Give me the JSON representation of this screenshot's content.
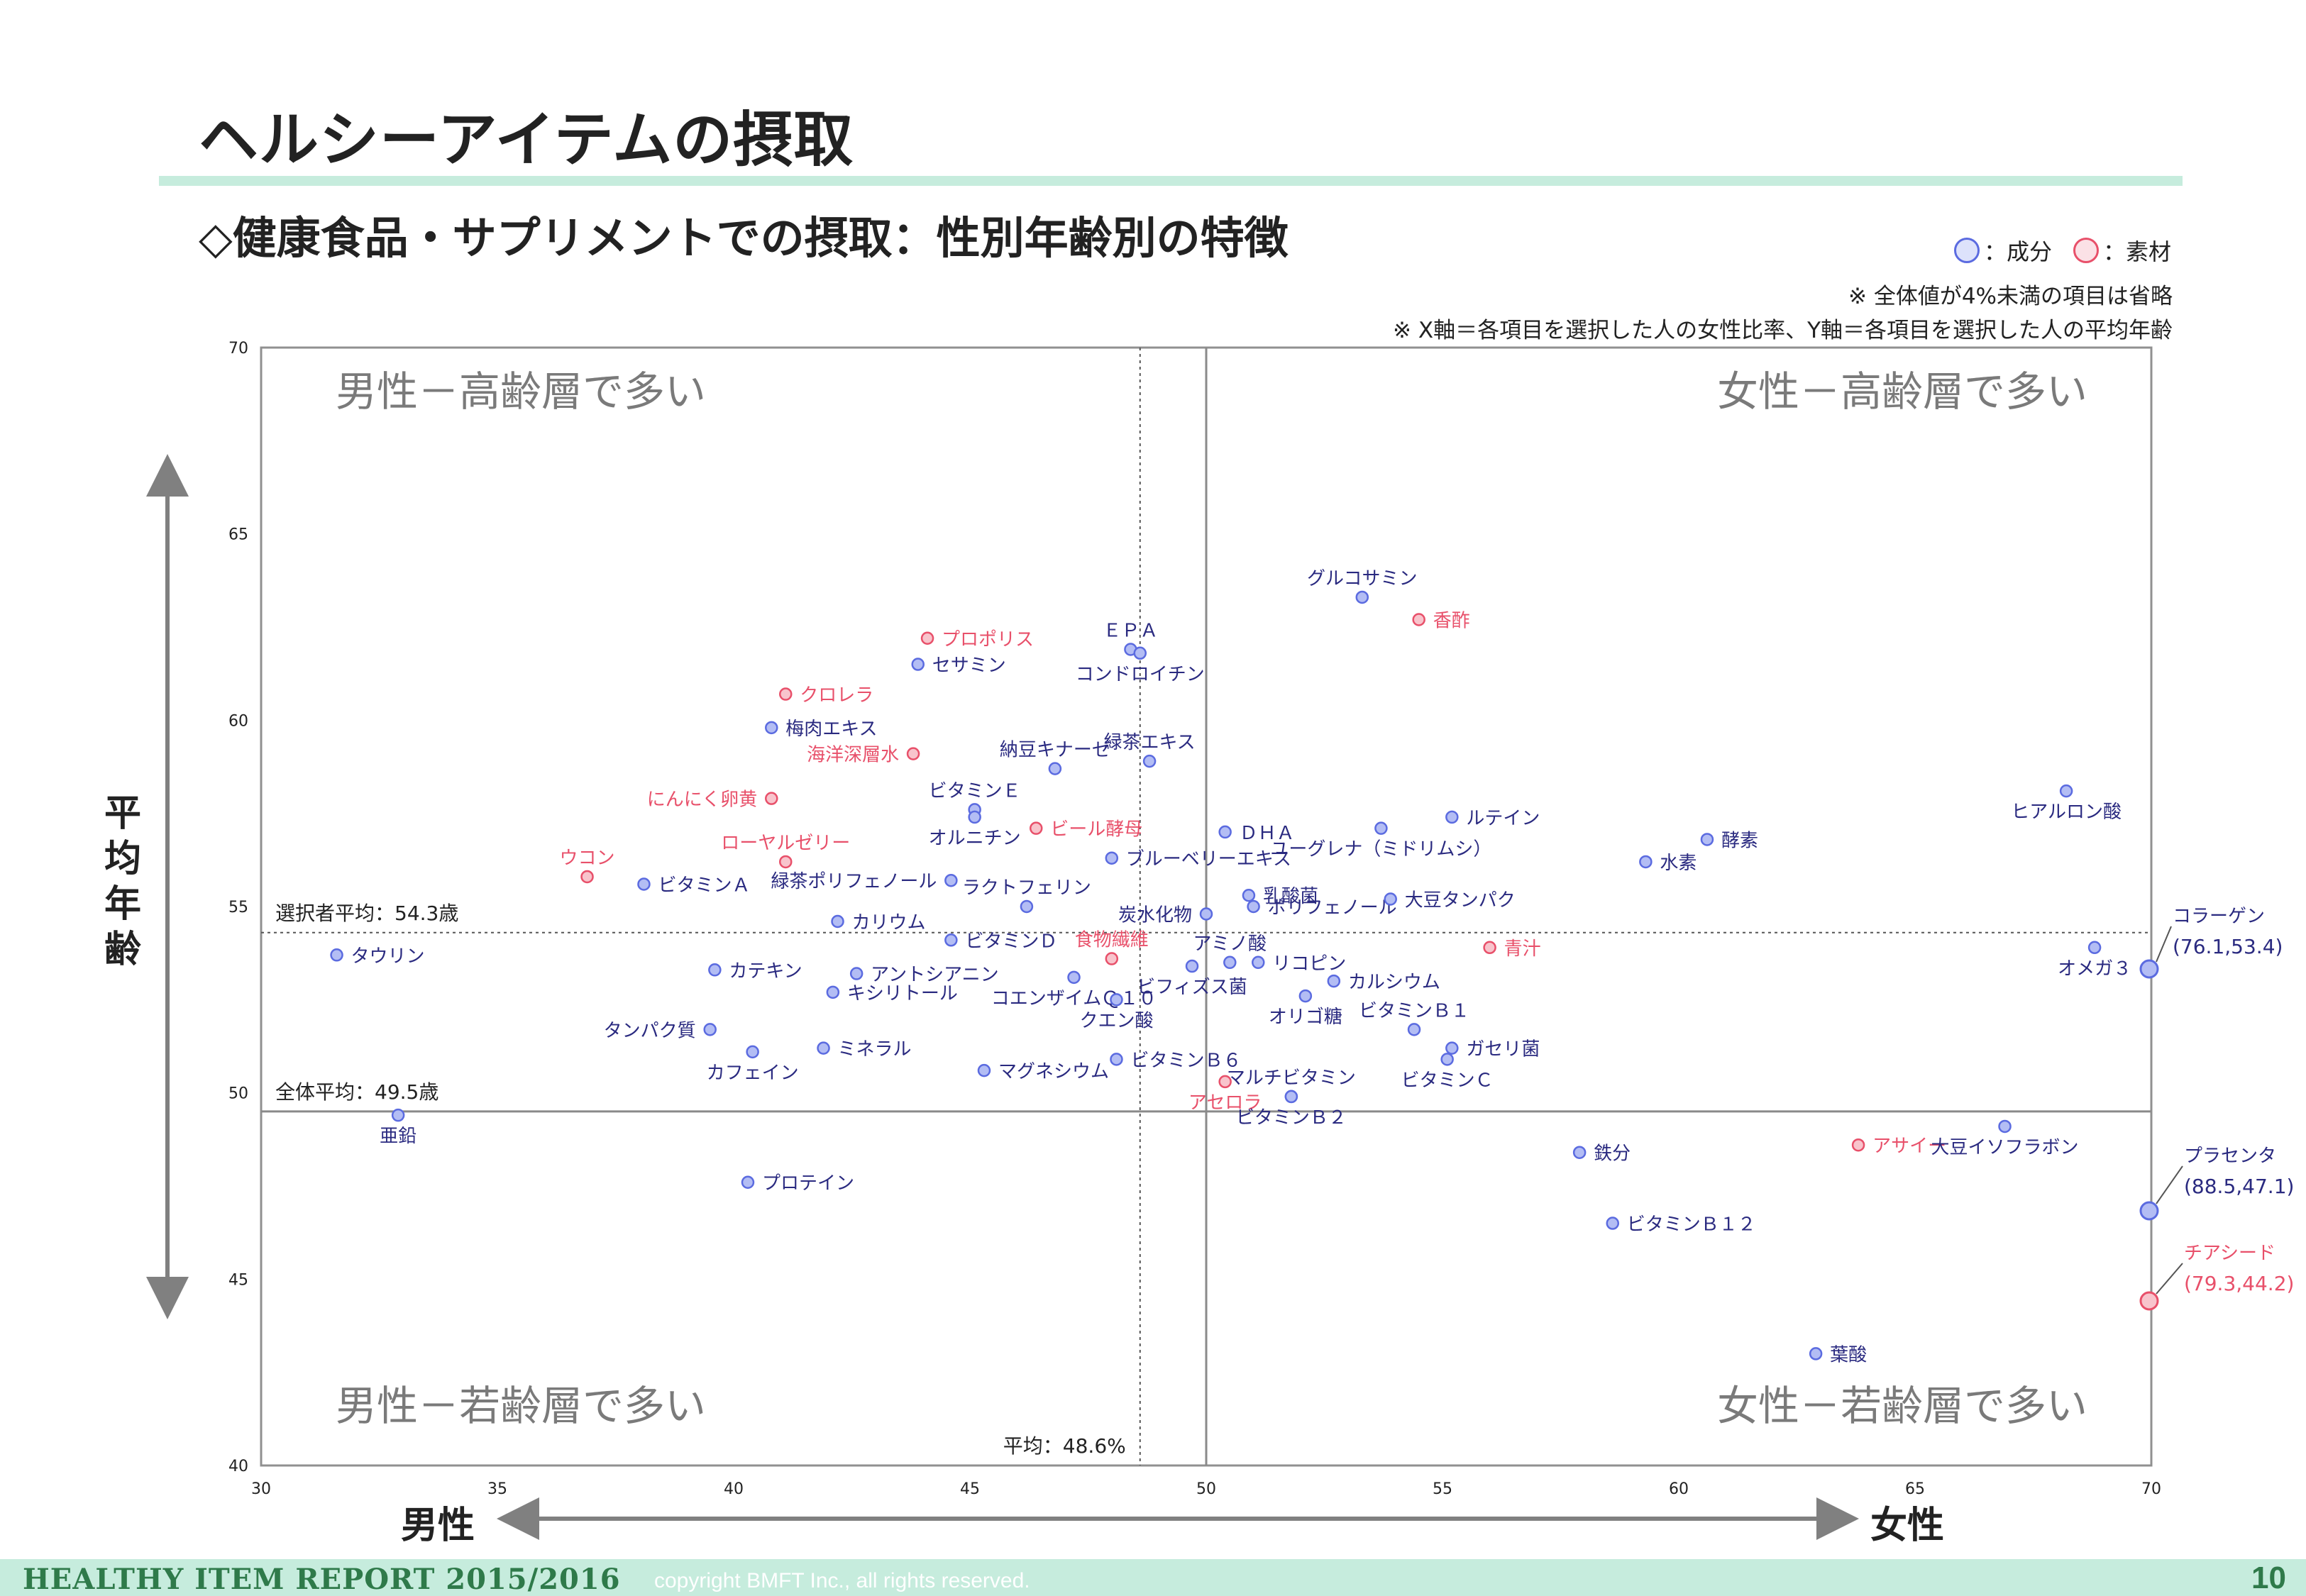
{
  "page": {
    "title": "ヘルシーアイテムの摂取",
    "subtitle": "◇健康食品・サプリメントでの摂取：性別年齢別の特徴",
    "legend": [
      {
        "label": "：成分",
        "color": "#5b6be0"
      },
      {
        "label": "：素材",
        "color": "#e8506a"
      }
    ],
    "note1": "※ 全体値が4%未満の項目は省略",
    "note2": "※ X軸＝各項目を選択した人の女性比率、Y軸＝各項目を選択した人の平均年齢",
    "y_axis_title": "平均年齢",
    "x_axis_male": "男性",
    "x_axis_female": "女性",
    "footer_left": "HEALTHY ITEM REPORT 2015/2016",
    "footer_copyright": "copyright  BMFT Inc., all rights reserved.",
    "page_number": "10"
  },
  "chart_data": {
    "type": "scatter",
    "xlim": [
      30,
      70
    ],
    "ylim": [
      40,
      70
    ],
    "x_ticks": [
      "30",
      "35",
      "40",
      "45",
      "50",
      "55",
      "60",
      "65",
      "70"
    ],
    "y_ticks": [
      "40",
      "45",
      "50",
      "55",
      "60",
      "65",
      "70"
    ],
    "grid": false,
    "quadrant_labels": {
      "top_left": "男性－高齢層で多い",
      "top_right": "女性－高齢層で多い",
      "bottom_left": "男性－若齢層で多い",
      "bottom_right": "女性－若齢層で多い"
    },
    "reference_lines": [
      {
        "axis": "y",
        "value": 54.3,
        "style": "dotted",
        "label": "選択者平均：54.3歳"
      },
      {
        "axis": "y",
        "value": 49.5,
        "style": "solid",
        "label": "全体平均：49.5歳"
      },
      {
        "axis": "x",
        "value": 48.6,
        "style": "dotted",
        "label": "平均：48.6%"
      },
      {
        "axis": "x",
        "value": 50,
        "style": "solid",
        "label": ""
      }
    ],
    "colors": {
      "component": "#5b6be0",
      "component_fill": "#b3bdf4",
      "material": "#e8506a",
      "material_fill": "#f8c4cc"
    },
    "points": [
      {
        "label": "グルコサミン",
        "x": 53.3,
        "y": 63.3,
        "kind": "component",
        "label_pos": "above"
      },
      {
        "label": "香酢",
        "x": 54.5,
        "y": 62.7,
        "kind": "material",
        "label_pos": "right"
      },
      {
        "label": "ＥＰＡ",
        "x": 48.4,
        "y": 61.9,
        "kind": "component",
        "label_pos": "above"
      },
      {
        "label": "コンドロイチン",
        "x": 48.6,
        "y": 61.8,
        "kind": "component",
        "label_pos": "below"
      },
      {
        "label": "プロポリス",
        "x": 44.1,
        "y": 62.2,
        "kind": "material",
        "label_pos": "right"
      },
      {
        "label": "セサミン",
        "x": 43.9,
        "y": 61.5,
        "kind": "component",
        "label_pos": "right"
      },
      {
        "label": "クロレラ",
        "x": 41.1,
        "y": 60.7,
        "kind": "material",
        "label_pos": "right"
      },
      {
        "label": "梅肉エキス",
        "x": 40.8,
        "y": 59.8,
        "kind": "component",
        "label_pos": "right"
      },
      {
        "label": "海洋深層水",
        "x": 43.8,
        "y": 59.1,
        "kind": "material",
        "label_pos": "left"
      },
      {
        "label": "納豆キナーゼ",
        "x": 46.8,
        "y": 58.7,
        "kind": "component",
        "label_pos": "above"
      },
      {
        "label": "緑茶エキス",
        "x": 48.8,
        "y": 58.9,
        "kind": "component",
        "label_pos": "above"
      },
      {
        "label": "にんにく卵黄",
        "x": 40.8,
        "y": 57.9,
        "kind": "material",
        "label_pos": "left"
      },
      {
        "label": "ビタミンＥ",
        "x": 45.1,
        "y": 57.6,
        "kind": "component",
        "label_pos": "above"
      },
      {
        "label": "オルニチン",
        "x": 45.1,
        "y": 57.4,
        "kind": "component",
        "label_pos": "below"
      },
      {
        "label": "ビール酵母",
        "x": 46.4,
        "y": 57.1,
        "kind": "material",
        "label_pos": "right"
      },
      {
        "label": "ＤＨＡ",
        "x": 50.4,
        "y": 57.0,
        "kind": "component",
        "label_pos": "right"
      },
      {
        "label": "ルテイン",
        "x": 55.2,
        "y": 57.4,
        "kind": "component",
        "label_pos": "right"
      },
      {
        "label": "ユーグレナ（ミドリムシ）",
        "x": 53.7,
        "y": 57.1,
        "kind": "component",
        "label_pos": "below"
      },
      {
        "label": "酵素",
        "x": 60.6,
        "y": 56.8,
        "kind": "component",
        "label_pos": "right"
      },
      {
        "label": "水素",
        "x": 59.3,
        "y": 56.2,
        "kind": "component",
        "label_pos": "right"
      },
      {
        "label": "ヒアルロン酸",
        "x": 68.2,
        "y": 58.1,
        "kind": "component",
        "label_pos": "below"
      },
      {
        "label": "ウコン",
        "x": 36.9,
        "y": 55.8,
        "kind": "material",
        "label_pos": "above"
      },
      {
        "label": "ビタミンＡ",
        "x": 38.1,
        "y": 55.6,
        "kind": "component",
        "label_pos": "right"
      },
      {
        "label": "ローヤルゼリー",
        "x": 41.1,
        "y": 56.2,
        "kind": "material",
        "label_pos": "above"
      },
      {
        "label": "緑茶ポリフェノール",
        "x": 44.6,
        "y": 55.7,
        "kind": "component",
        "label_pos": "left"
      },
      {
        "label": "ブルーベリーエキス",
        "x": 48.0,
        "y": 56.3,
        "kind": "component",
        "label_pos": "right"
      },
      {
        "label": "ラクトフェリン",
        "x": 46.2,
        "y": 55.0,
        "kind": "component",
        "label_pos": "above"
      },
      {
        "label": "乳酸菌",
        "x": 50.9,
        "y": 55.3,
        "kind": "component",
        "label_pos": "right"
      },
      {
        "label": "ポリフェノール",
        "x": 51.0,
        "y": 55.0,
        "kind": "component",
        "label_pos": "right"
      },
      {
        "label": "大豆タンパク",
        "x": 53.9,
        "y": 55.2,
        "kind": "component",
        "label_pos": "right"
      },
      {
        "label": "炭水化物",
        "x": 50.0,
        "y": 54.8,
        "kind": "component",
        "label_pos": "left"
      },
      {
        "label": "カリウム",
        "x": 42.2,
        "y": 54.6,
        "kind": "component",
        "label_pos": "right"
      },
      {
        "label": "ビタミンＤ",
        "x": 44.6,
        "y": 54.1,
        "kind": "component",
        "label_pos": "right"
      },
      {
        "label": "食物繊維",
        "x": 48.0,
        "y": 53.6,
        "kind": "material",
        "label_pos": "above"
      },
      {
        "label": "アミノ酸",
        "x": 50.5,
        "y": 53.5,
        "kind": "component",
        "label_pos": "above"
      },
      {
        "label": "青汁",
        "x": 56.0,
        "y": 53.9,
        "kind": "material",
        "label_pos": "right"
      },
      {
        "label": "タウリン",
        "x": 31.6,
        "y": 53.7,
        "kind": "component",
        "label_pos": "right"
      },
      {
        "label": "カテキン",
        "x": 39.6,
        "y": 53.3,
        "kind": "component",
        "label_pos": "right"
      },
      {
        "label": "アントシアニン",
        "x": 42.6,
        "y": 53.2,
        "kind": "component",
        "label_pos": "right"
      },
      {
        "label": "キシリトール",
        "x": 42.1,
        "y": 52.7,
        "kind": "component",
        "label_pos": "right"
      },
      {
        "label": "コエンザイムＱ１０",
        "x": 47.2,
        "y": 53.1,
        "kind": "component",
        "label_pos": "below"
      },
      {
        "label": "ビフィズス菌",
        "x": 49.7,
        "y": 53.4,
        "kind": "component",
        "label_pos": "below"
      },
      {
        "label": "リコピン",
        "x": 51.1,
        "y": 53.5,
        "kind": "component",
        "label_pos": "right"
      },
      {
        "label": "カルシウム",
        "x": 52.7,
        "y": 53.0,
        "kind": "component",
        "label_pos": "right"
      },
      {
        "label": "オリゴ糖",
        "x": 52.1,
        "y": 52.6,
        "kind": "component",
        "label_pos": "below"
      },
      {
        "label": "タンパク質",
        "x": 39.5,
        "y": 51.7,
        "kind": "component",
        "label_pos": "left"
      },
      {
        "label": "クエン酸",
        "x": 48.1,
        "y": 52.5,
        "kind": "component",
        "label_pos": "below"
      },
      {
        "label": "ビタミンＢ１",
        "x": 54.4,
        "y": 51.7,
        "kind": "component",
        "label_pos": "above"
      },
      {
        "label": "ガセリ菌",
        "x": 55.2,
        "y": 51.2,
        "kind": "component",
        "label_pos": "right"
      },
      {
        "label": "カフェイン",
        "x": 40.4,
        "y": 51.1,
        "kind": "component",
        "label_pos": "below"
      },
      {
        "label": "ミネラル",
        "x": 41.9,
        "y": 51.2,
        "kind": "component",
        "label_pos": "right"
      },
      {
        "label": "マグネシウム",
        "x": 45.3,
        "y": 50.6,
        "kind": "component",
        "label_pos": "right"
      },
      {
        "label": "ビタミンＢ６",
        "x": 48.1,
        "y": 50.9,
        "kind": "component",
        "label_pos": "right"
      },
      {
        "label": "ビタミンＣ",
        "x": 55.1,
        "y": 50.9,
        "kind": "component",
        "label_pos": "below"
      },
      {
        "label": "マルチビタミン",
        "x": 51.8,
        "y": 49.9,
        "kind": "component",
        "label_pos": "above"
      },
      {
        "label": "アセロラ",
        "x": 50.4,
        "y": 50.3,
        "kind": "material",
        "label_pos": "below"
      },
      {
        "label": "ビタミンＢ２",
        "x": 51.8,
        "y": 49.9,
        "kind": "component",
        "label_pos": "below"
      },
      {
        "label": "オメガ３",
        "x": 68.8,
        "y": 53.9,
        "kind": "component",
        "label_pos": "below"
      },
      {
        "label": "亜鉛",
        "x": 32.9,
        "y": 49.4,
        "kind": "component",
        "label_pos": "below"
      },
      {
        "label": "鉄分",
        "x": 57.9,
        "y": 48.4,
        "kind": "component",
        "label_pos": "right"
      },
      {
        "label": "アサイー",
        "x": 63.8,
        "y": 48.6,
        "kind": "material",
        "label_pos": "right"
      },
      {
        "label": "大豆イソフラボン",
        "x": 66.9,
        "y": 49.1,
        "kind": "component",
        "label_pos": "below"
      },
      {
        "label": "プロテイン",
        "x": 40.3,
        "y": 47.6,
        "kind": "component",
        "label_pos": "right"
      },
      {
        "label": "ビタミンＢ１２",
        "x": 58.6,
        "y": 46.5,
        "kind": "component",
        "label_pos": "right"
      },
      {
        "label": "葉酸",
        "x": 62.9,
        "y": 43.0,
        "kind": "component",
        "label_pos": "right"
      }
    ],
    "offscale_points": [
      {
        "label": "コラーゲン",
        "value_label": "(76.1,53.4)",
        "x": 76.1,
        "y": 53.4,
        "kind": "component"
      },
      {
        "label": "プラセンタ",
        "value_label": "(88.5,47.1)",
        "x": 88.5,
        "y": 47.1,
        "kind": "component"
      },
      {
        "label": "チアシード",
        "value_label": "(79.3,44.2)",
        "x": 79.3,
        "y": 44.2,
        "kind": "material"
      }
    ]
  }
}
